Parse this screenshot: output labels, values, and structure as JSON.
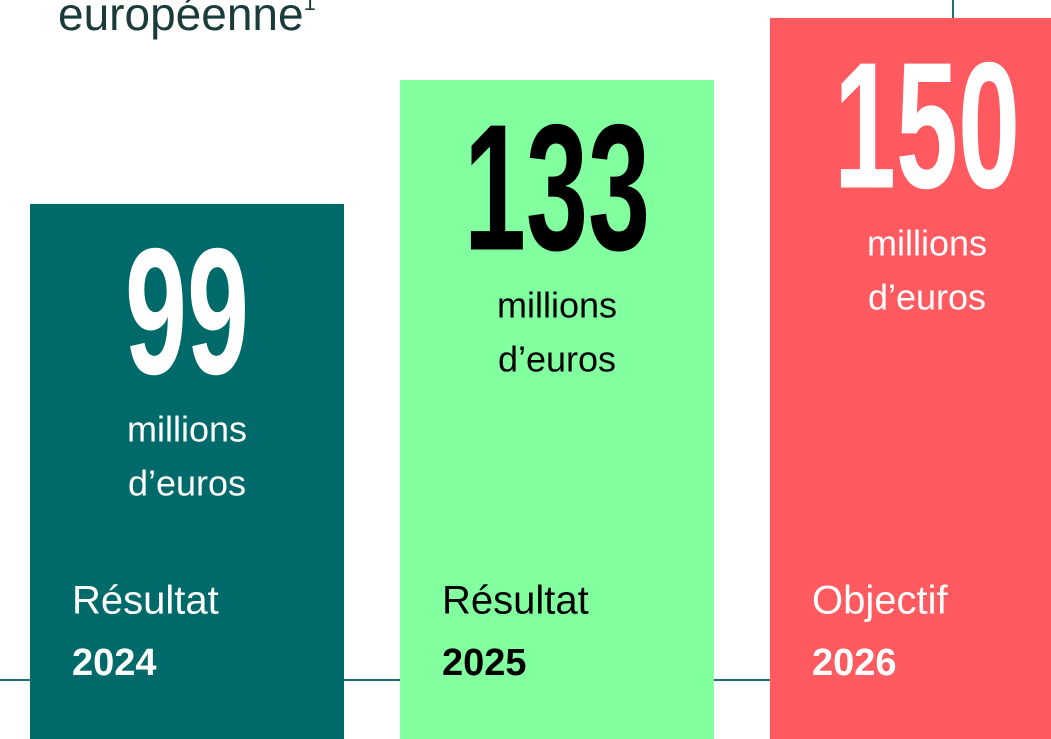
{
  "chart_data": {
    "type": "bar",
    "title": "européenne",
    "title_note": "1",
    "categories": [
      "2024",
      "2025",
      "2026"
    ],
    "category_kinds": [
      "Résultat",
      "Résultat",
      "Objectif"
    ],
    "values": [
      99,
      133,
      150
    ],
    "unit": [
      "millions",
      "d’euros"
    ],
    "colors": [
      "#006a6a",
      "#82ff9e",
      "#ff5a5f"
    ],
    "text_colors": [
      "#ffffff",
      "#000000",
      "#ffffff"
    ]
  }
}
